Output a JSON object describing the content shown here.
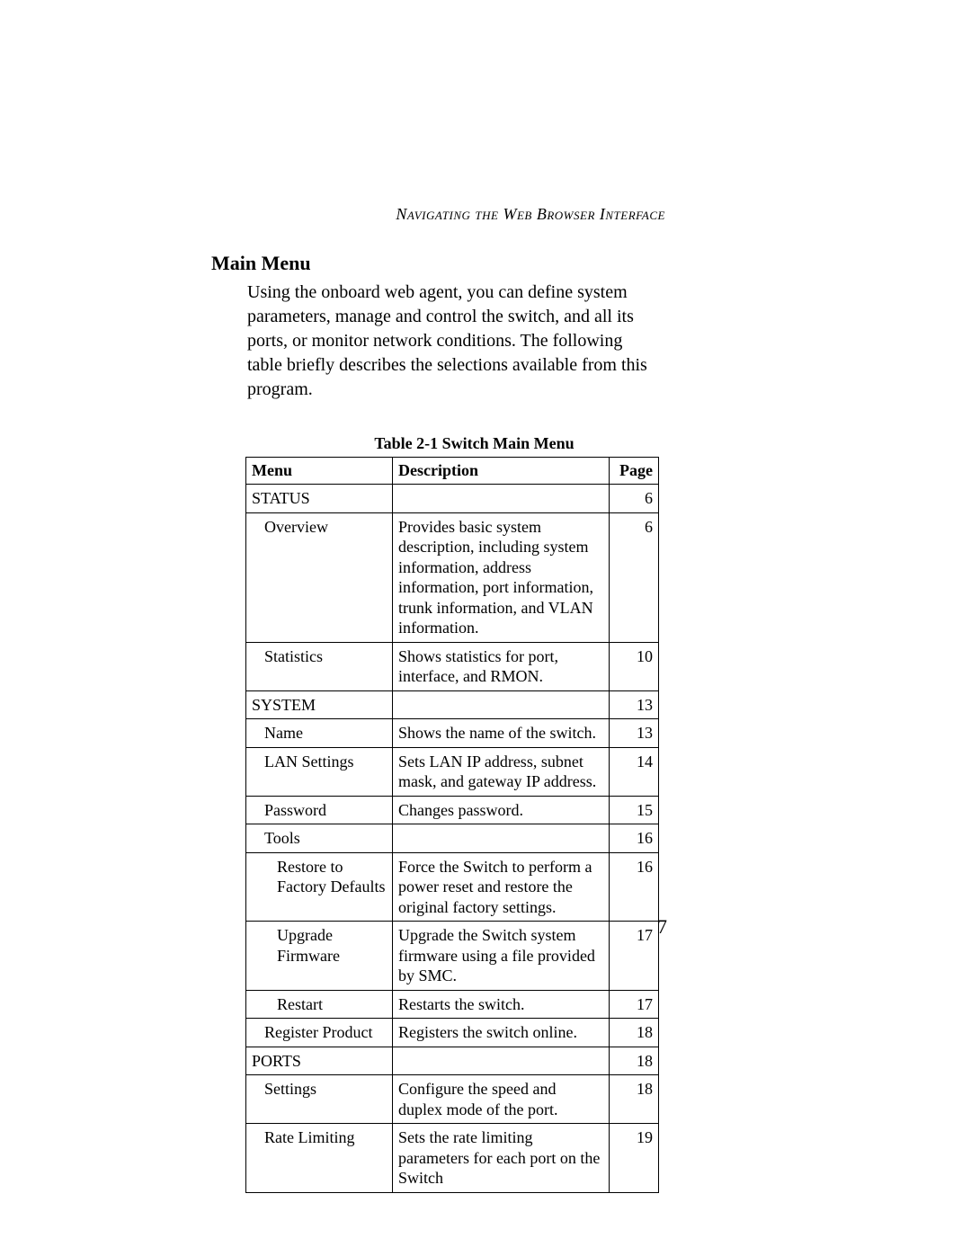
{
  "running_head": "Navigating the Web Browser Interface",
  "section_title": "Main Menu",
  "intro_text": "Using the onboard web agent, you can define system parameters, manage and control the switch, and all its ports, or monitor network conditions. The following table briefly describes the selections available from this program.",
  "table_caption": "Table 2-1  Switch Main Menu",
  "columns": {
    "menu": "Menu",
    "description": "Description",
    "page": "Page"
  },
  "rows": [
    {
      "menu": "STATUS",
      "indent": 0,
      "description": "",
      "page": "6"
    },
    {
      "menu": "Overview",
      "indent": 1,
      "description": "Provides basic system description, including system information, address information, port information, trunk information, and VLAN information.",
      "page": "6"
    },
    {
      "menu": "Statistics",
      "indent": 1,
      "description": "Shows statistics for port, interface, and RMON.",
      "page": "10"
    },
    {
      "menu": "SYSTEM",
      "indent": 0,
      "description": "",
      "page": "13"
    },
    {
      "menu": "Name",
      "indent": 1,
      "description": "Shows the name of the switch.",
      "page": "13"
    },
    {
      "menu": "LAN Settings",
      "indent": 1,
      "description": "Sets LAN IP address, subnet mask, and gateway IP address.",
      "page": "14"
    },
    {
      "menu": "Password",
      "indent": 1,
      "description": "Changes password.",
      "page": "15"
    },
    {
      "menu": "Tools",
      "indent": 1,
      "description": "",
      "page": "16"
    },
    {
      "menu": "Restore to Factory Defaults",
      "indent": 2,
      "description": "Force the Switch to perform a power reset and restore the original factory settings.",
      "page": "16"
    },
    {
      "menu": "Upgrade Firmware",
      "indent": 2,
      "description": "Upgrade the Switch system firmware using a file provided by SMC.",
      "page": "17"
    },
    {
      "menu": "Restart",
      "indent": 2,
      "description": "Restarts the switch.",
      "page": "17"
    },
    {
      "menu": "Register Product",
      "indent": 1,
      "description": "Registers the switch online.",
      "page": "18"
    },
    {
      "menu": "PORTS",
      "indent": 0,
      "description": "",
      "page": "18"
    },
    {
      "menu": "Settings",
      "indent": 1,
      "description": "Configure the speed and duplex mode of the port.",
      "page": "18"
    },
    {
      "menu": "Rate Limiting",
      "indent": 1,
      "description": "Sets the rate limiting parameters for each port on the Switch",
      "page": "19"
    }
  ],
  "page_number": "7"
}
